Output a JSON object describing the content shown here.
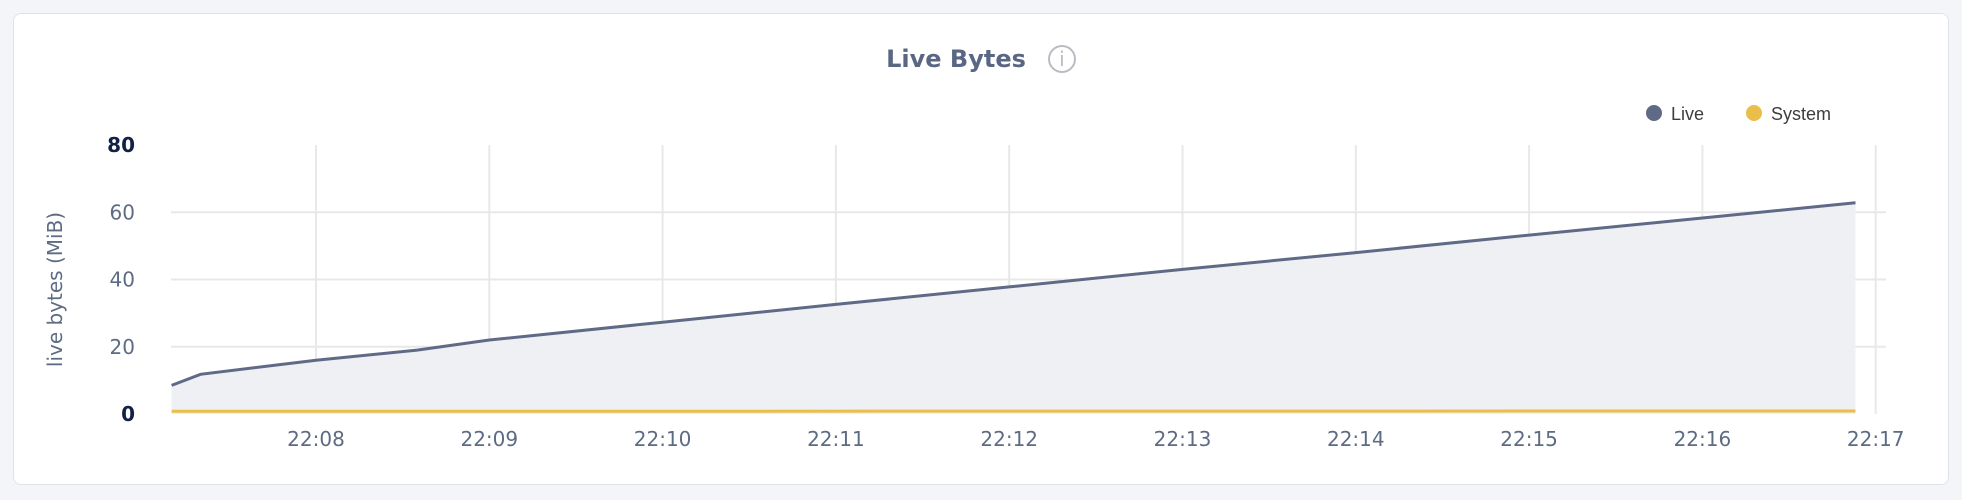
{
  "chart_data": {
    "type": "area",
    "title": "Live Bytes",
    "ylabel": "live bytes (MiB)",
    "xlabel": "",
    "ylim": [
      0,
      80
    ],
    "yticks": [
      "0",
      "20",
      "40",
      "60",
      "80"
    ],
    "xlim": [
      "22:07:10",
      "22:17:00"
    ],
    "xticks": [
      "22:08",
      "22:09",
      "22:10",
      "22:11",
      "22:12",
      "22:13",
      "22:14",
      "22:15",
      "22:16",
      "22:17"
    ],
    "grid": true,
    "legend_position": "top-right",
    "series": [
      {
        "name": "Live",
        "color": "#5f6a86",
        "fill": "#eef0f4",
        "x": [
          "22:07:10",
          "22:07:20",
          "22:08:00",
          "22:08:35",
          "22:09:00",
          "22:10:00",
          "22:11:00",
          "22:12:00",
          "22:13:00",
          "22:14:00",
          "22:15:00",
          "22:16:00",
          "22:16:53"
        ],
        "values": [
          8.5,
          11.8,
          16,
          19,
          22,
          27.3,
          32.6,
          37.8,
          43,
          48,
          53.2,
          58.3,
          62.8
        ]
      },
      {
        "name": "System",
        "color": "#ebbd49",
        "x": [
          "22:07:10",
          "22:16:53"
        ],
        "values": [
          0.8,
          0.9
        ]
      }
    ]
  },
  "info_icon": "info-icon"
}
